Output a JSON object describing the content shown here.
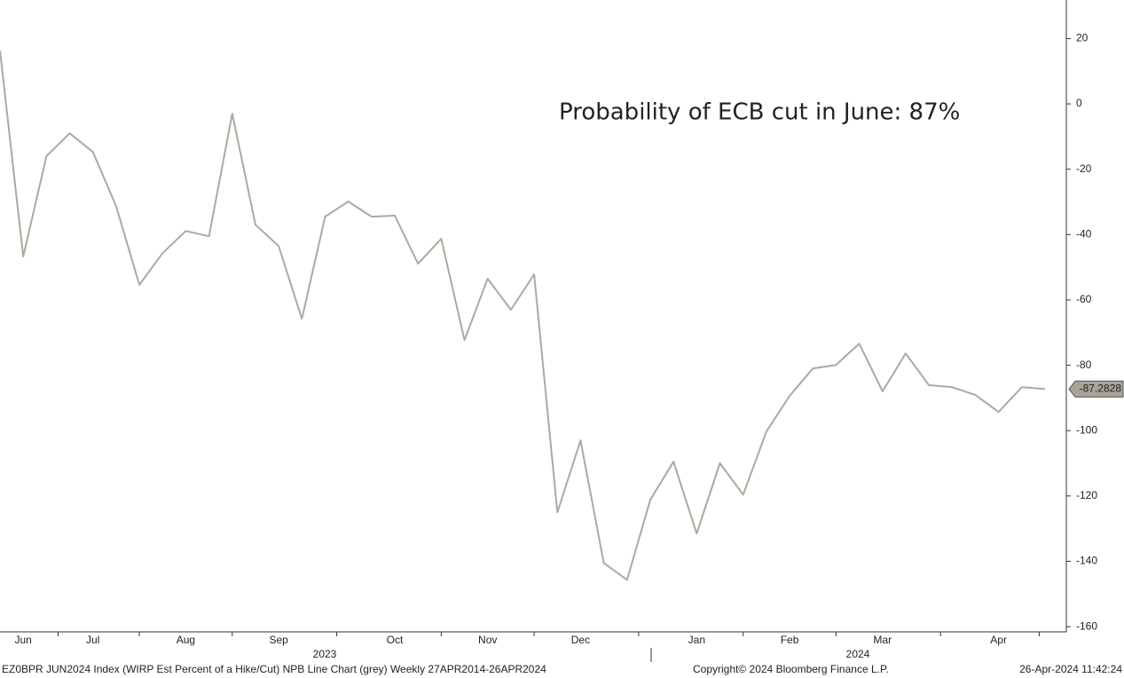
{
  "chart_data": {
    "type": "line",
    "annotation": "Probability of ECB cut in June: 87%",
    "categories": [
      null,
      "Jun",
      null,
      null,
      "Jul",
      null,
      null,
      null,
      "Aug",
      null,
      null,
      null,
      "Sep",
      null,
      null,
      null,
      null,
      "Oct",
      null,
      null,
      null,
      "Nov",
      null,
      null,
      null,
      "Dec",
      null,
      null,
      null,
      null,
      "Jan",
      null,
      null,
      null,
      "Feb",
      null,
      null,
      null,
      "Mar",
      null,
      null,
      null,
      null,
      "Apr",
      null,
      null
    ],
    "values": [
      16.3,
      -46.7,
      -16,
      -9,
      -14.7,
      -31.3,
      -55.4,
      -45.7,
      -38.9,
      -40.5,
      -3,
      -37,
      -43.5,
      -65.8,
      -34.5,
      -29.9,
      -34.5,
      -34.2,
      -48.9,
      -41.3,
      -72.3,
      -53.5,
      -63,
      -52.2,
      -125,
      -103,
      -140.5,
      -145.7,
      -121.2,
      -109.5,
      -131.5,
      -110,
      -119.6,
      -100.3,
      -89.4,
      -81,
      -79.9,
      -73.4,
      -88,
      -76.4,
      -86.1,
      -86.7,
      -89.1,
      -94.3,
      -86.7,
      -87.2828
    ],
    "color": "#b0a89e",
    "ylim": [
      -161.6,
      31.8
    ],
    "yticks": [
      20,
      0,
      -20,
      -40,
      -60,
      -80,
      -100,
      -120,
      -140,
      -160
    ],
    "years": [
      "2023",
      "2024"
    ],
    "footer_left": "EZ0BPR JUN2024 Index (WIRP Est Percent of a Hike/Cut) NPB Line Chart (grey)  Weekly 27APR2014-26APR2024",
    "footer_center": "Copyright© 2024 Bloomberg Finance L.P.",
    "footer_right": "26-Apr-2024 11:42:24"
  }
}
